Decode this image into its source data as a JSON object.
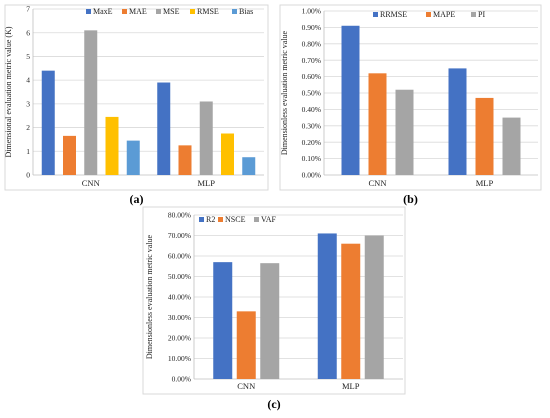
{
  "chart_data": [
    {
      "type": "bar",
      "panel_label": "(a)",
      "categories": [
        "CNN",
        "MLP"
      ],
      "ylabel": "Dimensional evaluation metric value (K)",
      "ylim": [
        0,
        7
      ],
      "yticks": [
        "0",
        "1",
        "2",
        "3",
        "4",
        "5",
        "6",
        "7"
      ],
      "legend_position": "top",
      "grid": true,
      "series": [
        {
          "name": "MaxE",
          "values": [
            4.4,
            3.9
          ],
          "color": "#4472C4"
        },
        {
          "name": "MAE",
          "values": [
            1.65,
            1.25
          ],
          "color": "#ED7D31"
        },
        {
          "name": "MSE",
          "values": [
            6.1,
            3.1
          ],
          "color": "#A5A5A5"
        },
        {
          "name": "RMSE",
          "values": [
            2.45,
            1.75
          ],
          "color": "#FFC000"
        },
        {
          "name": "Bias",
          "values": [
            1.45,
            0.75
          ],
          "color": "#5B9BD5"
        }
      ]
    },
    {
      "type": "bar",
      "panel_label": "(b)",
      "categories": [
        "CNN",
        "MLP"
      ],
      "ylabel": "Dimensionless evaluation metric value",
      "ylim": [
        0,
        1.0
      ],
      "yticks": [
        "0.00%",
        "0.10%",
        "0.20%",
        "0.30%",
        "0.40%",
        "0.50%",
        "0.60%",
        "0.70%",
        "0.80%",
        "0.90%",
        "1.00%"
      ],
      "legend_position": "top",
      "grid": true,
      "series": [
        {
          "name": "RRMSE",
          "values": [
            0.91,
            0.65
          ],
          "color": "#4472C4"
        },
        {
          "name": "MAPE",
          "values": [
            0.62,
            0.47
          ],
          "color": "#ED7D31"
        },
        {
          "name": "PI",
          "values": [
            0.52,
            0.35
          ],
          "color": "#A5A5A5"
        }
      ]
    },
    {
      "type": "bar",
      "panel_label": "(c)",
      "categories": [
        "CNN",
        "MLP"
      ],
      "ylabel": "Dimensionless evaluation metric value",
      "ylim": [
        0,
        80
      ],
      "yticks": [
        "0.00%",
        "10.00%",
        "20.00%",
        "30.00%",
        "40.00%",
        "50.00%",
        "60.00%",
        "70.00%",
        "80.00%"
      ],
      "legend_position": "top",
      "grid": true,
      "series": [
        {
          "name": "R2",
          "values": [
            57,
            71
          ],
          "color": "#4472C4"
        },
        {
          "name": "NSCE",
          "values": [
            33,
            66
          ],
          "color": "#ED7D31"
        },
        {
          "name": "VAF",
          "values": [
            56.5,
            70
          ],
          "color": "#A5A5A5"
        }
      ]
    }
  ]
}
